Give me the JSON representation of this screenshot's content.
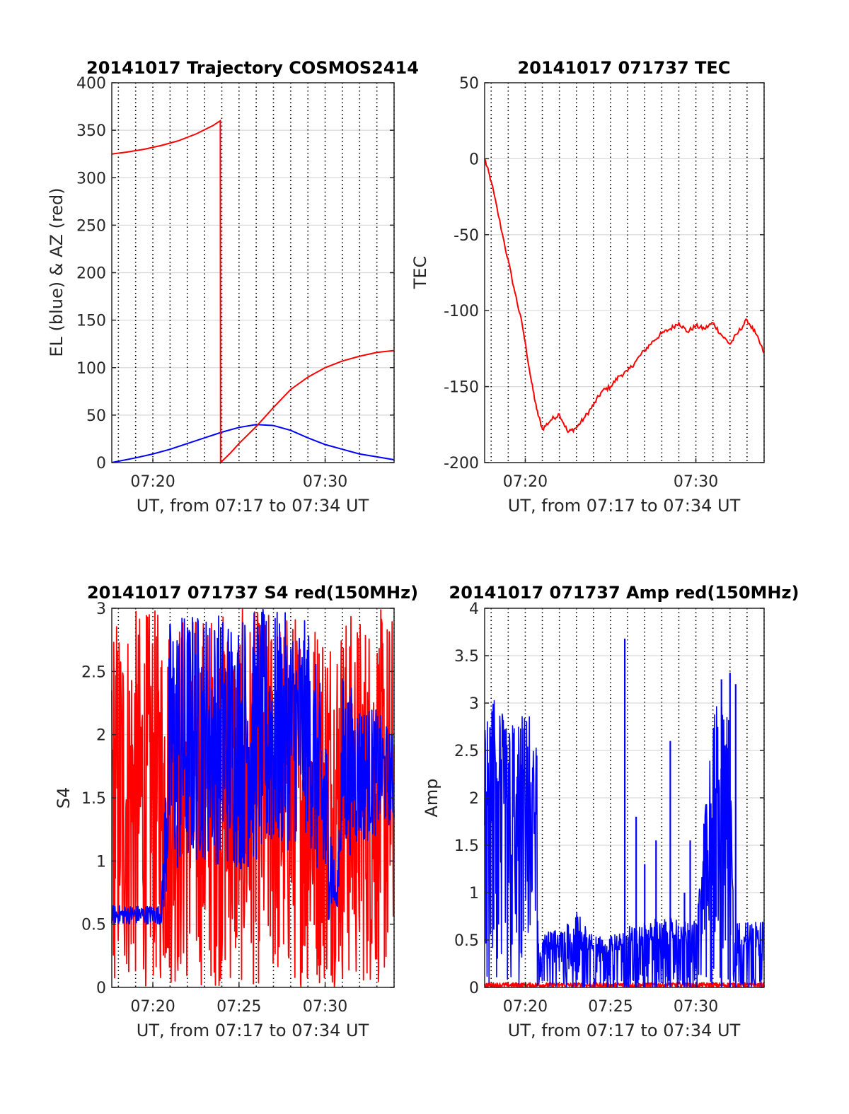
{
  "figure": {
    "background": "#ffffff",
    "colors": {
      "red": "#ff0000",
      "blue": "#0000ff",
      "grid": "#d9d9d9",
      "axis": "#262626"
    }
  },
  "chart_data": [
    {
      "id": "trajectory",
      "type": "line",
      "title": "20141017 Trajectory COSMOS2414",
      "xlabel": "UT, from 07:17 to 07:34 UT",
      "ylabel": "EL (blue) & AZ (red)",
      "xlim": [
        "07:17:37",
        "07:34:00"
      ],
      "ylim": [
        0,
        400
      ],
      "yticks": [
        0,
        50,
        100,
        150,
        200,
        250,
        300,
        350,
        400
      ],
      "xticks": [
        "07:20",
        "07:30"
      ],
      "grid": true,
      "minor_time_grid": "1 min",
      "series": [
        {
          "color": "#0000ff",
          "points": [
            [
              "07:17:37",
              0
            ],
            [
              "07:19:00",
              5
            ],
            [
              "07:20:00",
              9
            ],
            [
              "07:21:00",
              14
            ],
            [
              "07:22:00",
              20
            ],
            [
              "07:23:00",
              26
            ],
            [
              "07:24:00",
              32
            ],
            [
              "07:25:00",
              37
            ],
            [
              "07:26:00",
              40
            ],
            [
              "07:27:00",
              39
            ],
            [
              "07:28:00",
              34
            ],
            [
              "07:29:00",
              26
            ],
            [
              "07:30:00",
              19
            ],
            [
              "07:31:00",
              14
            ],
            [
              "07:32:00",
              9
            ],
            [
              "07:33:00",
              6
            ],
            [
              "07:34:00",
              3
            ]
          ]
        },
        {
          "color": "#ff0000",
          "points": [
            [
              "07:17:37",
              325
            ],
            [
              "07:18:30",
              327
            ],
            [
              "07:19:30",
              330
            ],
            [
              "07:20:30",
              334
            ],
            [
              "07:21:30",
              339
            ],
            [
              "07:22:30",
              346
            ],
            [
              "07:23:30",
              355
            ],
            [
              "07:23:55",
              360
            ],
            [
              "07:23:56",
              0
            ],
            [
              "07:24:30",
              10
            ],
            [
              "07:25:00",
              20
            ],
            [
              "07:26:00",
              38
            ],
            [
              "07:27:00",
              58
            ],
            [
              "07:28:00",
              77
            ],
            [
              "07:29:00",
              90
            ],
            [
              "07:30:00",
              100
            ],
            [
              "07:31:00",
              107
            ],
            [
              "07:32:00",
              112
            ],
            [
              "07:33:00",
              116
            ],
            [
              "07:34:00",
              118
            ]
          ]
        }
      ]
    },
    {
      "id": "tec",
      "type": "line",
      "title": "20141017 071737 TEC",
      "xlabel": "UT, from 07:17 to 07:34 UT",
      "ylabel": "TEC",
      "xlim": [
        "07:17:37",
        "07:34:00"
      ],
      "ylim": [
        -200,
        50
      ],
      "yticks": [
        -200,
        -150,
        -100,
        -50,
        0,
        50
      ],
      "xticks": [
        "07:20",
        "07:30"
      ],
      "grid": true,
      "minor_time_grid": "1 min",
      "series": [
        {
          "color": "#ff0000",
          "points": [
            [
              "07:17:37",
              0
            ],
            [
              "07:18:00",
              -15
            ],
            [
              "07:18:40",
              -50
            ],
            [
              "07:19:20",
              -85
            ],
            [
              "07:19:50",
              -110
            ],
            [
              "07:20:20",
              -145
            ],
            [
              "07:20:40",
              -165
            ],
            [
              "07:21:00",
              -178
            ],
            [
              "07:21:30",
              -172
            ],
            [
              "07:22:00",
              -168
            ],
            [
              "07:22:30",
              -180
            ],
            [
              "07:23:00",
              -177
            ],
            [
              "07:23:30",
              -170
            ],
            [
              "07:24:00",
              -162
            ],
            [
              "07:24:30",
              -153
            ],
            [
              "07:25:00",
              -150
            ],
            [
              "07:25:30",
              -143
            ],
            [
              "07:26:00",
              -140
            ],
            [
              "07:26:30",
              -133
            ],
            [
              "07:27:00",
              -126
            ],
            [
              "07:27:30",
              -120
            ],
            [
              "07:28:00",
              -115
            ],
            [
              "07:28:30",
              -112
            ],
            [
              "07:29:00",
              -108
            ],
            [
              "07:29:30",
              -114
            ],
            [
              "07:30:00",
              -110
            ],
            [
              "07:30:30",
              -112
            ],
            [
              "07:31:00",
              -108
            ],
            [
              "07:31:30",
              -116
            ],
            [
              "07:32:00",
              -122
            ],
            [
              "07:32:30",
              -114
            ],
            [
              "07:33:00",
              -106
            ],
            [
              "07:33:30",
              -115
            ],
            [
              "07:34:00",
              -128
            ]
          ]
        }
      ]
    },
    {
      "id": "s4",
      "type": "line",
      "title": "20141017 071737 S4 red(150MHz)",
      "xlabel": "UT, from 07:17 to 07:34 UT",
      "ylabel": "S4",
      "xlim": [
        "07:17:37",
        "07:34:00"
      ],
      "ylim": [
        0,
        3
      ],
      "yticks": [
        0,
        0.5,
        1,
        1.5,
        2,
        2.5,
        3
      ],
      "xticks": [
        "07:20",
        "07:25",
        "07:30"
      ],
      "grid": true,
      "minor_time_grid": "1 min",
      "series": [
        {
          "color": "#ff0000",
          "style": "dense-noise",
          "envelope": [
            [
              "07:17:37",
              [
                0,
                3
              ]
            ],
            [
              "07:20:30",
              [
                0,
                3
              ]
            ],
            [
              "07:24:00",
              [
                0,
                3
              ]
            ],
            [
              "07:27:00",
              [
                0,
                3
              ]
            ],
            [
              "07:30:00",
              [
                0,
                3
              ]
            ],
            [
              "07:34:00",
              [
                0,
                3
              ]
            ]
          ]
        },
        {
          "color": "#0000ff",
          "style": "dense-noise",
          "envelope": [
            [
              "07:17:37",
              [
                0.5,
                0.65
              ]
            ],
            [
              "07:20:30",
              [
                0.5,
                0.65
              ]
            ],
            [
              "07:21:00",
              [
                0.8,
                3
              ]
            ],
            [
              "07:23:00",
              [
                1.0,
                3
              ]
            ],
            [
              "07:25:00",
              [
                0.9,
                3
              ]
            ],
            [
              "07:27:00",
              [
                1.0,
                3
              ]
            ],
            [
              "07:29:00",
              [
                1.2,
                2.9
              ]
            ],
            [
              "07:30:00",
              [
                0.5,
                2.2
              ]
            ],
            [
              "07:30:40",
              [
                0.6,
                0.7
              ]
            ],
            [
              "07:31:00",
              [
                1.0,
                2.5
              ]
            ],
            [
              "07:32:00",
              [
                1.1,
                2.3
              ]
            ],
            [
              "07:33:00",
              [
                1.2,
                2.2
              ]
            ],
            [
              "07:34:00",
              [
                1.3,
                2.0
              ]
            ]
          ]
        }
      ]
    },
    {
      "id": "amp",
      "type": "line",
      "title": "20141017 071737 Amp red(150MHz)",
      "xlabel": "UT, from 07:17 to 07:34 UT",
      "ylabel": "Amp",
      "xlim": [
        "07:17:37",
        "07:34:00"
      ],
      "ylim": [
        0,
        4
      ],
      "yticks": [
        0,
        0.5,
        1,
        1.5,
        2,
        2.5,
        3,
        3.5,
        4
      ],
      "xticks": [
        "07:20",
        "07:25",
        "07:30"
      ],
      "grid": true,
      "minor_time_grid": "1 min",
      "series": [
        {
          "color": "#ff0000",
          "style": "dense-noise",
          "envelope": [
            [
              "07:17:37",
              [
                0,
                0.05
              ]
            ],
            [
              "07:34:00",
              [
                0,
                0.05
              ]
            ]
          ]
        },
        {
          "color": "#0000ff",
          "style": "dense-noise",
          "envelope": [
            [
              "07:17:37",
              [
                0,
                2.7
              ]
            ],
            [
              "07:18:00",
              [
                0,
                3.1
              ]
            ],
            [
              "07:19:00",
              [
                0,
                2.8
              ]
            ],
            [
              "07:20:00",
              [
                0,
                2.9
              ]
            ],
            [
              "07:20:40",
              [
                0,
                2.9
              ]
            ],
            [
              "07:20:45",
              [
                0,
                0.55
              ]
            ],
            [
              "07:22:00",
              [
                0,
                0.65
              ]
            ],
            [
              "07:23:00",
              [
                0,
                0.8
              ]
            ],
            [
              "07:24:00",
              [
                0,
                0.55
              ]
            ],
            [
              "07:25:00",
              [
                0,
                0.55
              ]
            ],
            [
              "07:26:00",
              [
                0,
                0.65
              ]
            ],
            [
              "07:28:00",
              [
                0,
                0.75
              ]
            ],
            [
              "07:30:00",
              [
                0,
                0.7
              ]
            ],
            [
              "07:31:00",
              [
                0,
                3.0
              ]
            ],
            [
              "07:32:00",
              [
                0,
                3.1
              ]
            ],
            [
              "07:32:15",
              [
                0,
                0.7
              ]
            ],
            [
              "07:34:00",
              [
                0,
                0.7
              ]
            ]
          ],
          "spikes": [
            [
              "07:25:50",
              3.68
            ],
            [
              "07:26:30",
              1.8
            ],
            [
              "07:27:00",
              1.3
            ],
            [
              "07:27:40",
              1.55
            ],
            [
              "07:28:30",
              2.6
            ],
            [
              "07:29:20",
              1.0
            ],
            [
              "07:29:40",
              1.55
            ],
            [
              "07:31:30",
              3.25
            ],
            [
              "07:32:00",
              3.32
            ],
            [
              "07:32:20",
              3.2
            ]
          ]
        }
      ]
    }
  ]
}
